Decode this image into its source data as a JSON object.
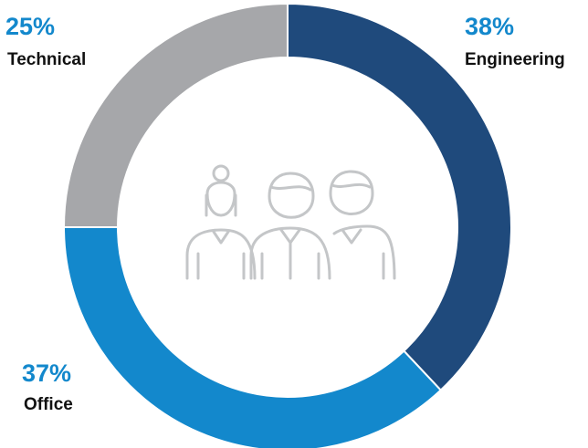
{
  "chart_data": {
    "type": "pie",
    "style": "donut",
    "slices": [
      {
        "label": "Engineering",
        "value": 38,
        "value_label": "38%",
        "color": "#1f4a7c"
      },
      {
        "label": "Office",
        "value": 37,
        "value_label": "37%",
        "color": "#1388cc"
      },
      {
        "label": "Technical",
        "value": 25,
        "value_label": "25%",
        "color": "#a6a7aa"
      }
    ],
    "label_color": "#1388cc",
    "icon": "people-group-icon",
    "icon_color": "#c4c6c8"
  }
}
